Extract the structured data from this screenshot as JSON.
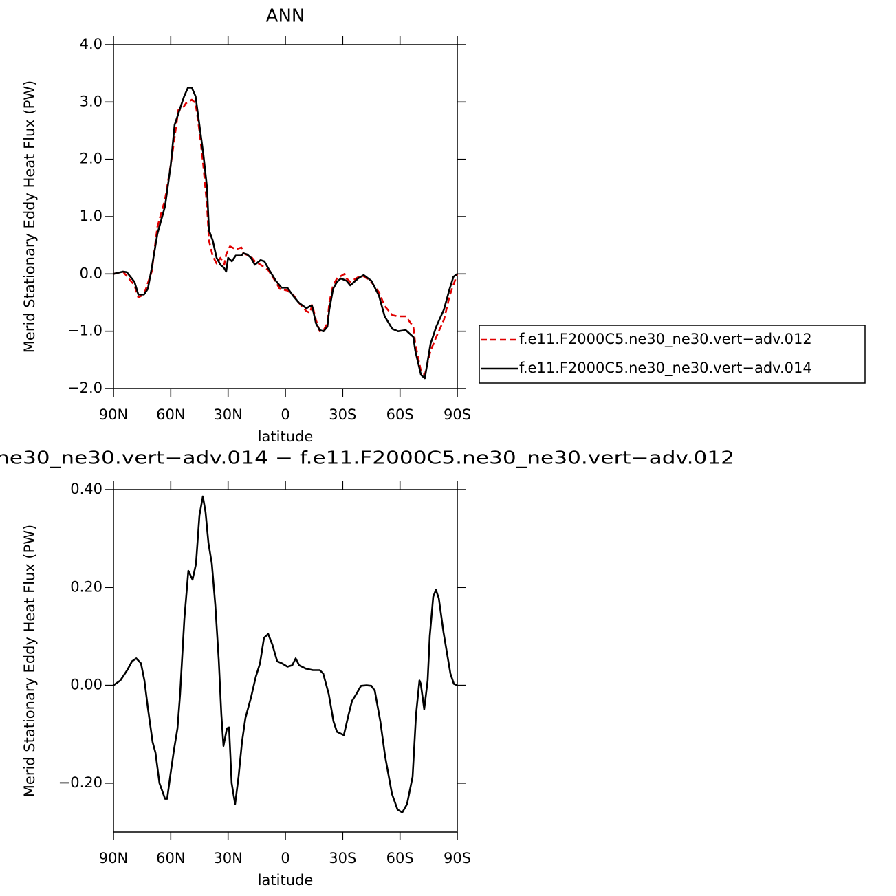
{
  "chart_data": [
    {
      "type": "line",
      "title": "ANN",
      "xlabel": "latitude",
      "ylabel": "Merid Stationary Eddy Heat Flux (PW)",
      "xlim": [
        90,
        -90
      ],
      "xticks": [
        {
          "value": 90,
          "label": "90N"
        },
        {
          "value": 60,
          "label": "60N"
        },
        {
          "value": 30,
          "label": "30N"
        },
        0,
        {
          "value": -30,
          "label": "30S"
        },
        {
          "value": -60,
          "label": "60S"
        },
        {
          "value": -90,
          "label": "90S"
        }
      ],
      "ylim": [
        -2,
        4
      ],
      "yticks": [
        {
          "value": -2,
          "label": "−2.0"
        },
        {
          "value": -1,
          "label": "−1.0"
        },
        {
          "value": 0,
          "label": "0.0"
        },
        {
          "value": 1,
          "label": "1.0"
        },
        {
          "value": 2,
          "label": "2.0"
        },
        {
          "value": 3,
          "label": "3.0"
        },
        {
          "value": 4,
          "label": "4.0"
        }
      ],
      "legend": "right",
      "series": [
        {
          "name": "f.e11.F2000C5.ne30_ne30.vert−adv.012",
          "color": "#e00000",
          "line_style": "dashed",
          "x": [
            90,
            85,
            79,
            77,
            74,
            70,
            67,
            63,
            60,
            56,
            54,
            52,
            49,
            47,
            45,
            43,
            41,
            40,
            38,
            36,
            34,
            32,
            31,
            29,
            26,
            23,
            22,
            18,
            16,
            13,
            9,
            5,
            3,
            -1,
            -4,
            -7,
            -11,
            -13,
            -14,
            -16,
            -18,
            -20,
            -22,
            -23,
            -25,
            -27,
            -31,
            -32,
            -34,
            -38,
            -41,
            -45,
            -49,
            -52,
            -56,
            -59,
            -63,
            -67,
            -68,
            -71,
            -73,
            -76,
            -79,
            -83,
            -86,
            -90
          ],
          "values": [
            0,
            0.04,
            -0.2,
            -0.41,
            -0.36,
            0.04,
            0.82,
            1.3,
            1.9,
            2.86,
            2.88,
            2.98,
            3.04,
            2.98,
            2.5,
            1.9,
            1.18,
            0.58,
            0.31,
            0.18,
            0.28,
            0.16,
            0.34,
            0.48,
            0.43,
            0.46,
            0.36,
            0.3,
            0.22,
            0.16,
            0.07,
            -0.14,
            -0.26,
            -0.29,
            -0.36,
            -0.5,
            -0.65,
            -0.68,
            -0.53,
            -0.8,
            -1.0,
            -0.98,
            -0.86,
            -0.5,
            -0.2,
            -0.08,
            0,
            -0.08,
            -0.14,
            -0.06,
            -0.04,
            -0.14,
            -0.32,
            -0.56,
            -0.72,
            -0.74,
            -0.74,
            -0.92,
            -1.22,
            -1.7,
            -1.76,
            -1.34,
            -1.1,
            -0.8,
            -0.38,
            0
          ]
        },
        {
          "name": "f.e11.F2000C5.ne30_ne30.vert−adv.014",
          "color": "#000000",
          "line_style": "solid",
          "x": [
            90,
            85,
            83,
            79,
            77,
            74,
            72,
            70,
            67,
            63,
            60,
            58,
            55,
            53,
            51,
            49,
            47,
            45,
            43,
            41,
            40,
            38,
            36,
            34,
            32,
            31,
            30,
            28,
            26,
            23,
            22,
            20,
            18,
            16,
            13,
            11,
            9,
            5,
            2,
            -1,
            -4,
            -7,
            -11,
            -13,
            -14,
            -16,
            -18,
            -20,
            -22,
            -23,
            -25,
            -27,
            -29,
            -32,
            -34,
            -38,
            -41,
            -45,
            -49,
            -52,
            -56,
            -59,
            -63,
            -67,
            -68,
            -71,
            -73,
            -76,
            -79,
            -83,
            -86,
            -88,
            -90
          ],
          "values": [
            0,
            0.04,
            0.03,
            -0.14,
            -0.36,
            -0.36,
            -0.26,
            0.1,
            0.7,
            1.18,
            1.9,
            2.6,
            2.9,
            3.1,
            3.25,
            3.25,
            3.1,
            2.6,
            2.1,
            1.5,
            0.76,
            0.58,
            0.28,
            0.16,
            0.1,
            0.04,
            0.28,
            0.22,
            0.32,
            0.32,
            0.36,
            0.34,
            0.28,
            0.16,
            0.24,
            0.22,
            0.1,
            -0.12,
            -0.24,
            -0.24,
            -0.38,
            -0.5,
            -0.6,
            -0.56,
            -0.56,
            -0.86,
            -0.98,
            -1.0,
            -0.92,
            -0.62,
            -0.26,
            -0.14,
            -0.08,
            -0.12,
            -0.2,
            -0.08,
            -0.02,
            -0.12,
            -0.38,
            -0.74,
            -0.96,
            -1.0,
            -0.98,
            -1.1,
            -1.34,
            -1.76,
            -1.82,
            -1.22,
            -0.92,
            -0.62,
            -0.26,
            -0.05,
            0
          ]
        }
      ]
    },
    {
      "type": "line",
      "title": "ne30_ne30.vert−adv.014 − f.e11.F2000C5.ne30_ne30.vert−adv.012",
      "xlabel": "latitude",
      "ylabel": "Merid Stationary Eddy Heat Flux (PW)",
      "xlim": [
        90,
        -90
      ],
      "xticks": [
        {
          "value": 90,
          "label": "90N"
        },
        {
          "value": 60,
          "label": "60N"
        },
        {
          "value": 30,
          "label": "30N"
        },
        0,
        {
          "value": -30,
          "label": "30S"
        },
        {
          "value": -60,
          "label": "60S"
        },
        {
          "value": -90,
          "label": "90S"
        }
      ],
      "ylim": [
        -0.3,
        0.4
      ],
      "yticks": [
        {
          "value": -0.2,
          "label": "−0.20"
        },
        {
          "value": 0,
          "label": "0.00"
        },
        {
          "value": 0.2,
          "label": "0.20"
        },
        {
          "value": 0.4,
          "label": "0.40"
        }
      ],
      "color": "#000000",
      "x": [
        90,
        86.4,
        82.8,
        80.3,
        78.1,
        75.6,
        73.8,
        72,
        69.5,
        68,
        65.9,
        63,
        61.9,
        60.1,
        58.3,
        56.5,
        55.1,
        52.9,
        50.8,
        48.6,
        46.8,
        45,
        43.2,
        41.8,
        40.3,
        38.5,
        36.7,
        34.9,
        33.5,
        32.4,
        30.6,
        29.5,
        28.1,
        26.3,
        24.5,
        22.7,
        20.9,
        18,
        15.5,
        13.3,
        11.2,
        9,
        6.8,
        4.3,
        1.8,
        -1.1,
        -3.6,
        -5.4,
        -7.2,
        -10.8,
        -14.4,
        -18,
        -19.8,
        -22.7,
        -25.2,
        -27,
        -30.6,
        -33.1,
        -34.9,
        -37.1,
        -39.6,
        -42.5,
        -45,
        -46.8,
        -49.7,
        -52.2,
        -55.8,
        -58.7,
        -61.2,
        -63.7,
        -66.6,
        -68.4,
        -70.2,
        -70.9,
        -72.7,
        -74.5,
        -75.6,
        -77.4,
        -78.8,
        -80.3,
        -82.8,
        -84.6,
        -86.4,
        -88.2,
        -90
      ],
      "values": [
        0,
        0.01,
        0.031,
        0.049,
        0.055,
        0.045,
        0.01,
        -0.046,
        -0.116,
        -0.138,
        -0.2,
        -0.232,
        -0.232,
        -0.18,
        -0.131,
        -0.088,
        -0.018,
        0.136,
        0.234,
        0.216,
        0.248,
        0.347,
        0.386,
        0.354,
        0.291,
        0.248,
        0.164,
        0.052,
        -0.06,
        -0.124,
        -0.088,
        -0.086,
        -0.2,
        -0.243,
        -0.187,
        -0.116,
        -0.067,
        -0.025,
        0.017,
        0.045,
        0.097,
        0.105,
        0.083,
        0.049,
        0.045,
        0.038,
        0.041,
        0.055,
        0.041,
        0.034,
        0.031,
        0.031,
        0.024,
        -0.018,
        -0.074,
        -0.095,
        -0.102,
        -0.06,
        -0.032,
        -0.018,
        -0.001,
        0,
        -0.001,
        -0.011,
        -0.074,
        -0.145,
        -0.222,
        -0.254,
        -0.26,
        -0.243,
        -0.187,
        -0.06,
        0.01,
        0.003,
        -0.049,
        0.01,
        0.101,
        0.181,
        0.195,
        0.178,
        0.108,
        0.066,
        0.024,
        0.003,
        0
      ]
    }
  ]
}
